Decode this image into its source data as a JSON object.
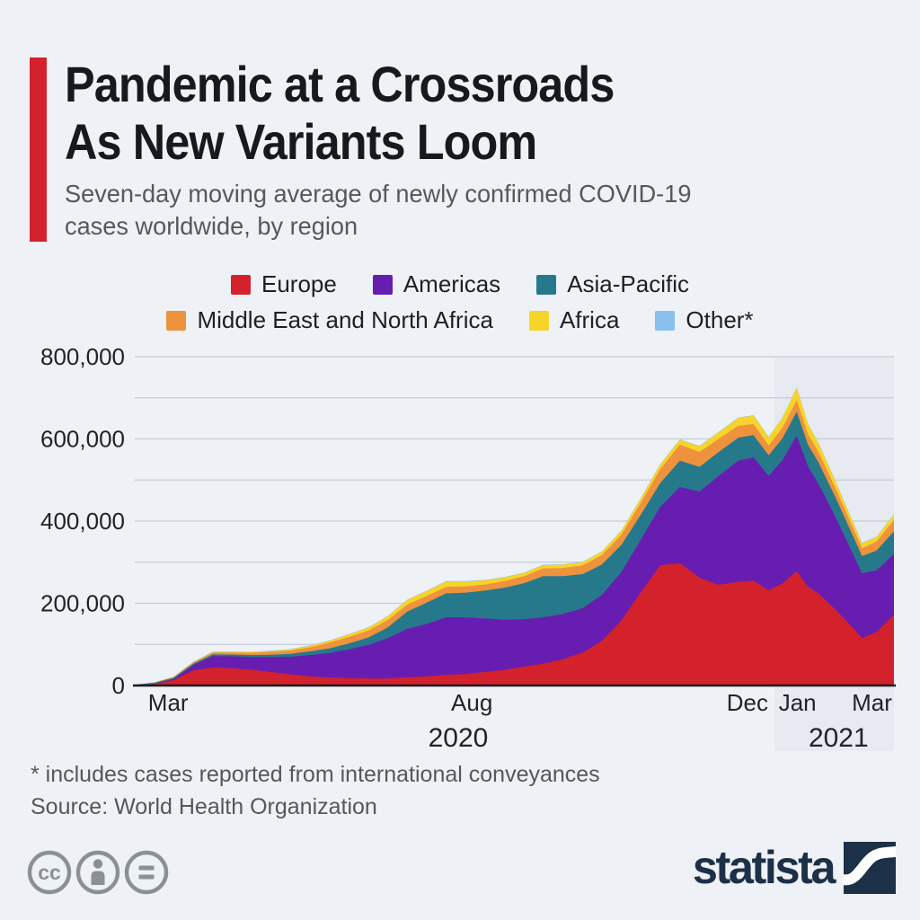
{
  "page": {
    "background_color": "#eef1f6",
    "accent_color": "#d3222c"
  },
  "header": {
    "title_line1": "Pandemic at a Crossroads",
    "title_line2": "As New Variants Loom",
    "subtitle_line1": "Seven-day moving average of newly confirmed COVID-19",
    "subtitle_line2": "cases worldwide, by region"
  },
  "legend": {
    "rows": [
      [
        {
          "label": "Europe",
          "color": "#d3222c"
        },
        {
          "label": "Americas",
          "color": "#681db1"
        },
        {
          "label": "Asia-Pacific",
          "color": "#26798b"
        },
        {
          "label": "Middle East and North Africa",
          "color": "#ef923d"
        },
        {
          "label": "Africa",
          "color": "#f6d42a"
        },
        {
          "label": "Other*",
          "color": "#8ac0ee"
        }
      ]
    ],
    "row_split": 3
  },
  "chart_data": {
    "type": "area",
    "stacked": true,
    "title": "Pandemic at a Crossroads As New Variants Loom",
    "subtitle": "Seven-day moving average of newly confirmed COVID-19 cases worldwide, by region",
    "grid": true,
    "legend_position": "top",
    "x": [
      0,
      0.026,
      0.051,
      0.077,
      0.103,
      0.128,
      0.154,
      0.179,
      0.205,
      0.231,
      0.256,
      0.282,
      0.308,
      0.333,
      0.359,
      0.385,
      0.41,
      0.436,
      0.462,
      0.487,
      0.513,
      0.538,
      0.564,
      0.59,
      0.615,
      0.641,
      0.667,
      0.692,
      0.718,
      0.744,
      0.769,
      0.795,
      0.815,
      0.835,
      0.853,
      0.872,
      0.887,
      0.9,
      0.923,
      0.946,
      0.958,
      0.977,
      1.0
    ],
    "x_range_note": "late Feb 2020 through early Mar 2021",
    "series": [
      {
        "name": "Europe",
        "color": "#d3222c",
        "values": [
          300,
          3500,
          13000,
          37000,
          44000,
          42000,
          38000,
          33000,
          27000,
          22000,
          19000,
          18000,
          17000,
          17000,
          20000,
          22000,
          26000,
          28000,
          33000,
          38000,
          46000,
          53000,
          64000,
          80000,
          108000,
          158000,
          228000,
          292000,
          298000,
          262000,
          245000,
          252000,
          255000,
          232000,
          248000,
          278000,
          240000,
          225000,
          185000,
          140000,
          115000,
          130000,
          172000
        ]
      },
      {
        "name": "Americas",
        "color": "#681db1",
        "values": [
          0,
          500,
          3000,
          13000,
          28000,
          29000,
          31000,
          36000,
          43000,
          52000,
          60000,
          70000,
          82000,
          98000,
          118000,
          128000,
          140000,
          138000,
          130000,
          122000,
          115000,
          113000,
          110000,
          108000,
          112000,
          118000,
          128000,
          142000,
          185000,
          210000,
          265000,
          295000,
          300000,
          278000,
          300000,
          330000,
          292000,
          268000,
          225000,
          180000,
          158000,
          150000,
          148000
        ]
      },
      {
        "name": "Asia-Pacific",
        "color": "#26798b",
        "values": [
          1500,
          2500,
          2500,
          3000,
          4000,
          4500,
          5000,
          6000,
          7000,
          9000,
          11000,
          14000,
          18000,
          26000,
          42000,
          52000,
          58000,
          60000,
          68000,
          78000,
          88000,
          100000,
          92000,
          83000,
          74000,
          66000,
          61000,
          58000,
          64000,
          60000,
          58000,
          56000,
          54000,
          50000,
          53000,
          58000,
          53000,
          52000,
          48000,
          44000,
          42000,
          48000,
          55000
        ]
      },
      {
        "name": "Middle East and North Africa",
        "color": "#ef923d",
        "values": [
          100,
          1000,
          2000,
          3000,
          4500,
          5000,
          5500,
          7000,
          8000,
          10000,
          14000,
          16000,
          17000,
          18000,
          17000,
          16000,
          16000,
          15000,
          15000,
          16000,
          17000,
          19000,
          20000,
          21000,
          23000,
          25000,
          29000,
          34000,
          39000,
          36000,
          32000,
          29000,
          27000,
          24000,
          26000,
          28000,
          26000,
          25000,
          22000,
          20000,
          19000,
          22000,
          28000
        ]
      },
      {
        "name": "Africa",
        "color": "#f6d42a",
        "values": [
          0,
          100,
          300,
          600,
          1000,
          1200,
          1500,
          2000,
          2500,
          3500,
          4500,
          6000,
          7000,
          9000,
          11000,
          12000,
          13000,
          12000,
          10000,
          9000,
          8000,
          8000,
          8000,
          8000,
          8000,
          9000,
          10000,
          11000,
          12000,
          14000,
          16000,
          19000,
          21000,
          20000,
          24000,
          30000,
          24000,
          22000,
          17000,
          13000,
          12000,
          11000,
          13000
        ]
      },
      {
        "name": "Other*",
        "color": "#8ac0ee",
        "values": [
          0,
          300,
          500,
          1000,
          1000,
          1000,
          1000,
          1000,
          1000,
          1000,
          1000,
          1000,
          1000,
          1000,
          1000,
          1000,
          1000,
          1000,
          1000,
          1000,
          1000,
          1000,
          1000,
          1000,
          1000,
          1000,
          1000,
          1000,
          1000,
          1000,
          1000,
          1000,
          1000,
          1000,
          1000,
          1000,
          1000,
          1000,
          1000,
          1000,
          1000,
          1000,
          1000
        ]
      }
    ],
    "y_axis": {
      "min": 0,
      "max": 800000,
      "gridline_step": 100000,
      "tick_values": [
        0,
        200000,
        400000,
        600000,
        800000
      ],
      "tick_labels": [
        "0",
        "200,000",
        "400,000",
        "600,000",
        "800,000"
      ]
    },
    "x_axis": {
      "ticks": [
        {
          "label": "Mar",
          "position": 0.044
        },
        {
          "label": "Aug",
          "position": 0.444
        },
        {
          "label": "Dec",
          "position": 0.807
        },
        {
          "label": "Jan",
          "position": 0.873
        },
        {
          "label": "Mar",
          "position": 0.971
        }
      ],
      "year_labels": [
        {
          "label": "2020",
          "position": 0.426
        },
        {
          "label": "2021",
          "position": 0.927
        }
      ]
    },
    "highlight_region": {
      "start": 0.843,
      "end": 1.0,
      "color": "#e7eaf1",
      "label": "2021"
    },
    "colors": {
      "gridline": "#c6cbd4",
      "axis_line": "#16191d",
      "tick_text": "#202329"
    }
  },
  "footer": {
    "footnote": "* includes cases reported from international conveyances",
    "source": "Source: World Health Organization"
  },
  "branding": {
    "logo_text": "statista",
    "logo_color": "#1c3048",
    "cc_icons": [
      "cc-icon",
      "attribution-icon",
      "equals-icon"
    ],
    "cc_icon_color": "#8a9096"
  }
}
